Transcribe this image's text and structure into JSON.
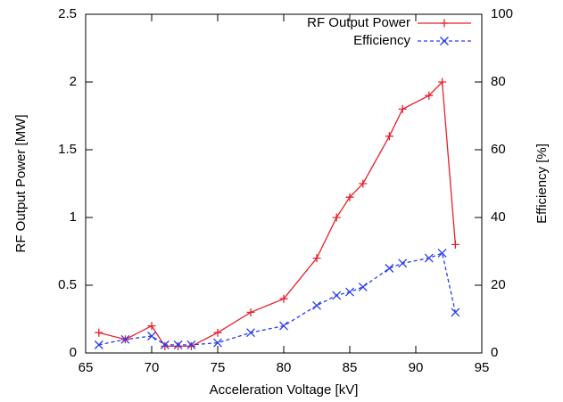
{
  "chart_data": {
    "type": "line",
    "x_label": "Acceleration Voltage [kV]",
    "y_label": "RF Output Power [MW]",
    "y2_label": "Efficiency [%]",
    "x": [
      66,
      68,
      70,
      71,
      72,
      73,
      75,
      77.5,
      80,
      82.5,
      84,
      85,
      86,
      88,
      89,
      91,
      92,
      93
    ],
    "series": [
      {
        "name": "RF Output Power",
        "color": "#e8202a",
        "marker": "+",
        "line_style": "solid",
        "values": [
          0.15,
          0.1,
          0.2,
          0.05,
          0.05,
          0.05,
          0.15,
          0.3,
          0.4,
          0.7,
          1.0,
          1.15,
          1.25,
          1.6,
          1.8,
          1.9,
          2.0,
          0.8
        ]
      },
      {
        "name": "Efficiency",
        "color": "#2a3cf0",
        "marker": "x",
        "line_style": "dashed",
        "axis": "y2",
        "values": [
          2.4,
          4,
          5,
          2.4,
          2.4,
          2.4,
          3,
          6,
          8,
          14,
          17,
          18,
          19.5,
          25,
          26.5,
          28,
          29.5,
          12
        ]
      }
    ],
    "xlim": [
      65,
      95
    ],
    "xticks": [
      65,
      70,
      75,
      80,
      85,
      90,
      95
    ],
    "ylim": [
      0,
      2.5
    ],
    "yticks": [
      0,
      0.5,
      1,
      1.5,
      2,
      2.5
    ],
    "y2lim": [
      0,
      100
    ],
    "y2ticks": [
      0,
      20,
      40,
      60,
      80,
      100
    ],
    "legend": "upper right"
  }
}
